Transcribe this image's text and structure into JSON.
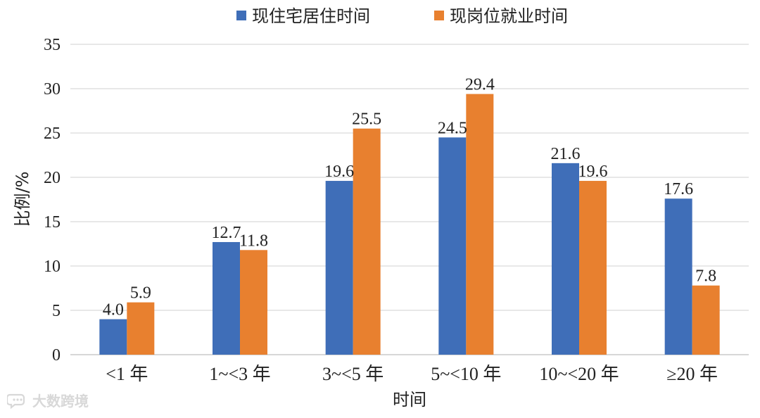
{
  "chart_data": {
    "type": "bar",
    "categories": [
      "<1 年",
      "1~<3 年",
      "3~<5 年",
      "5~<10 年",
      "10~<20 年",
      "≥20 年"
    ],
    "series": [
      {
        "name": "现住宅居住时间",
        "values": [
          4.0,
          12.7,
          19.6,
          24.5,
          21.6,
          17.6
        ],
        "labels": [
          "4.0",
          "12.7",
          "19.6",
          "24.5",
          "21.6",
          "17.6"
        ],
        "color": "#3F6EB8"
      },
      {
        "name": "现岗位就业时间",
        "values": [
          5.9,
          11.8,
          25.5,
          29.4,
          19.6,
          7.8
        ],
        "labels": [
          "5.9",
          "11.8",
          "25.5",
          "29.4",
          "19.6",
          "7.8"
        ],
        "color": "#E8802F"
      }
    ],
    "xlabel": "时间",
    "ylabel": "比例/%",
    "ylim": [
      0,
      35
    ],
    "yticks": [
      0,
      5,
      10,
      15,
      20,
      25,
      30,
      35
    ],
    "grid": true,
    "legend": "top-center"
  },
  "watermark": {
    "text": "大数跨境",
    "icon": "chat-bubble-logo"
  },
  "colors": {
    "grid": "#D9D9D9",
    "axis": "#BFBFBF",
    "text": "#222222"
  }
}
